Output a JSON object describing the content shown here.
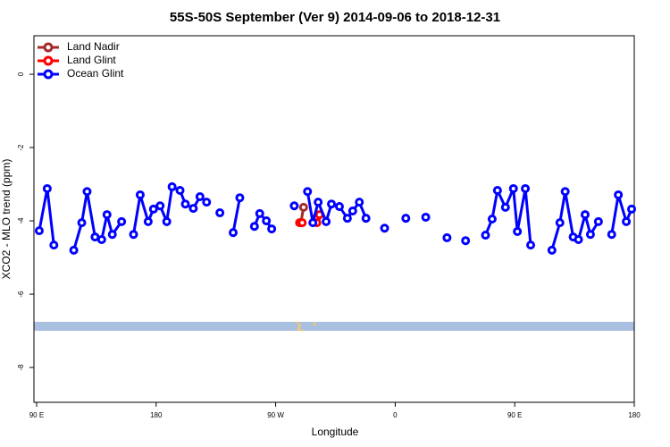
{
  "chart_data": {
    "type": "line",
    "title": "55S-50S September (Ver 9)   2014-09-06 to 2018-12-31",
    "x_label": "Longitude",
    "y_label": "XCO2 - MLO trend (ppm)",
    "xlim": [
      88,
      540
    ],
    "ylim": [
      -8.95,
      1.05
    ],
    "xticks": [
      {
        "value": 90,
        "label": "90 E"
      },
      {
        "value": 180,
        "label": "180"
      },
      {
        "value": 270,
        "label": "90 W"
      },
      {
        "value": 360,
        "label": "0"
      },
      {
        "value": 450,
        "label": "90 E"
      },
      {
        "value": 540,
        "label": "180"
      }
    ],
    "yticks": [
      0,
      -2,
      -4,
      -6,
      -8
    ],
    "legend": "top-left",
    "series": [
      {
        "name": "Land Nadir",
        "color": "#a52a2a",
        "x": [
          289,
          291,
          null,
          301
        ],
        "values": [
          -4.05,
          -3.63,
          null,
          -3.9
        ]
      },
      {
        "name": "Land Glint",
        "color": "#ff0000",
        "x": [
          288,
          290,
          null,
          301,
          303
        ],
        "values": [
          -4.05,
          -4.05,
          null,
          -4.05,
          -3.83
        ]
      },
      {
        "name": "Ocean Glint",
        "color": "#0000ff",
        "x": [
          92,
          98,
          103,
          null,
          118,
          124,
          128,
          134,
          139,
          143,
          147,
          154,
          null,
          163,
          168,
          174,
          178,
          183,
          188,
          192,
          198,
          202,
          208,
          213,
          218,
          null,
          228,
          null,
          238,
          243,
          null,
          254,
          258,
          263,
          267,
          null,
          284,
          null,
          294,
          298,
          302,
          308,
          312,
          318,
          324,
          328,
          333,
          338,
          null,
          352,
          null,
          368,
          null,
          383,
          null,
          399,
          null,
          413,
          null,
          428,
          433,
          437,
          443,
          449,
          452,
          458,
          462,
          null,
          478,
          484,
          488,
          494,
          498,
          503,
          507,
          513,
          null,
          523,
          528,
          534,
          538
        ],
        "values": [
          -4.27,
          -3.12,
          -4.66,
          null,
          -4.8,
          -4.05,
          -3.2,
          -4.44,
          -4.51,
          -3.83,
          -4.37,
          -4.02,
          null,
          -4.37,
          -3.29,
          -4.02,
          -3.68,
          -3.59,
          -4.02,
          -3.07,
          -3.17,
          -3.54,
          -3.66,
          -3.34,
          -3.49,
          null,
          -3.78,
          null,
          -4.32,
          -3.37,
          null,
          -4.15,
          -3.8,
          -4.0,
          -4.22,
          null,
          -3.59,
          null,
          -3.2,
          -4.05,
          -3.49,
          -4.02,
          -3.54,
          -3.61,
          -3.93,
          -3.73,
          -3.49,
          -3.93,
          null,
          -4.2,
          null,
          -3.93,
          null,
          -3.9,
          null,
          -4.46,
          null,
          -4.54,
          null,
          -4.39,
          -3.95,
          -3.17,
          -3.63,
          -3.12,
          -4.29,
          -3.12,
          -4.66,
          null,
          -4.8,
          -4.05,
          -3.2,
          -4.44,
          -4.51,
          -3.83,
          -4.37,
          -4.02,
          null,
          -4.37,
          -3.29,
          -4.02,
          -3.68
        ]
      }
    ]
  }
}
